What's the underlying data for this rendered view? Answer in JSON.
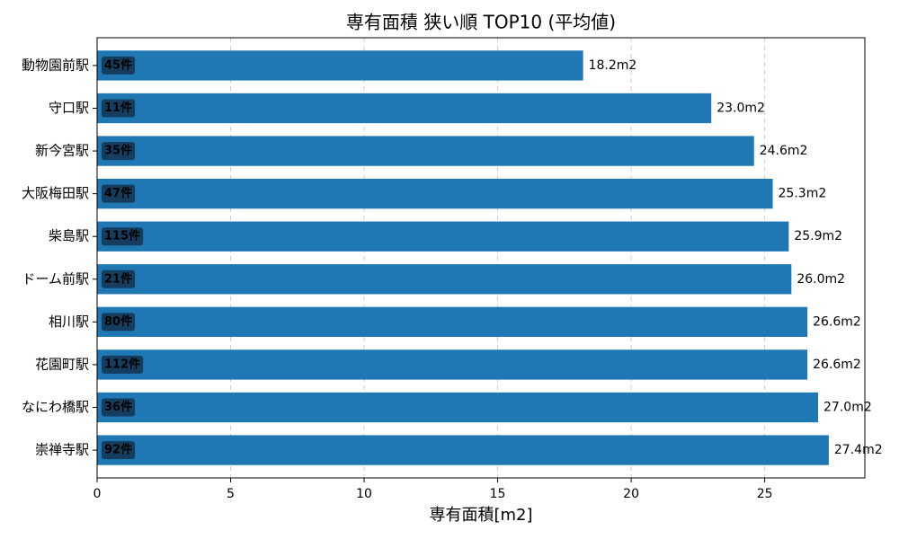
{
  "chart_data": {
    "type": "barh",
    "title": "専有面積 狭い順 TOP10 (平均値)",
    "xlabel": "専有面積[m2]",
    "categories": [
      "動物園前駅",
      "守口駅",
      "新今宮駅",
      "大阪梅田駅",
      "柴島駅",
      "ドーム前駅",
      "相川駅",
      "花園町駅",
      "なにわ橋駅",
      "崇禅寺駅"
    ],
    "values": [
      18.2,
      23.0,
      24.6,
      25.3,
      25.9,
      26.0,
      26.6,
      26.6,
      27.0,
      27.4
    ],
    "value_labels": [
      "18.2m2",
      "23.0m2",
      "24.6m2",
      "25.3m2",
      "25.9m2",
      "26.0m2",
      "26.6m2",
      "26.6m2",
      "27.0m2",
      "27.4m2"
    ],
    "bar_annotations": [
      "45件",
      "11件",
      "35件",
      "47件",
      "115件",
      "21件",
      "80件",
      "112件",
      "36件",
      "92件"
    ],
    "color": "#1f77b4",
    "xlim": [
      0,
      28.75
    ],
    "xticks": [
      0,
      5,
      10,
      15,
      20,
      25
    ],
    "grid": true
  }
}
